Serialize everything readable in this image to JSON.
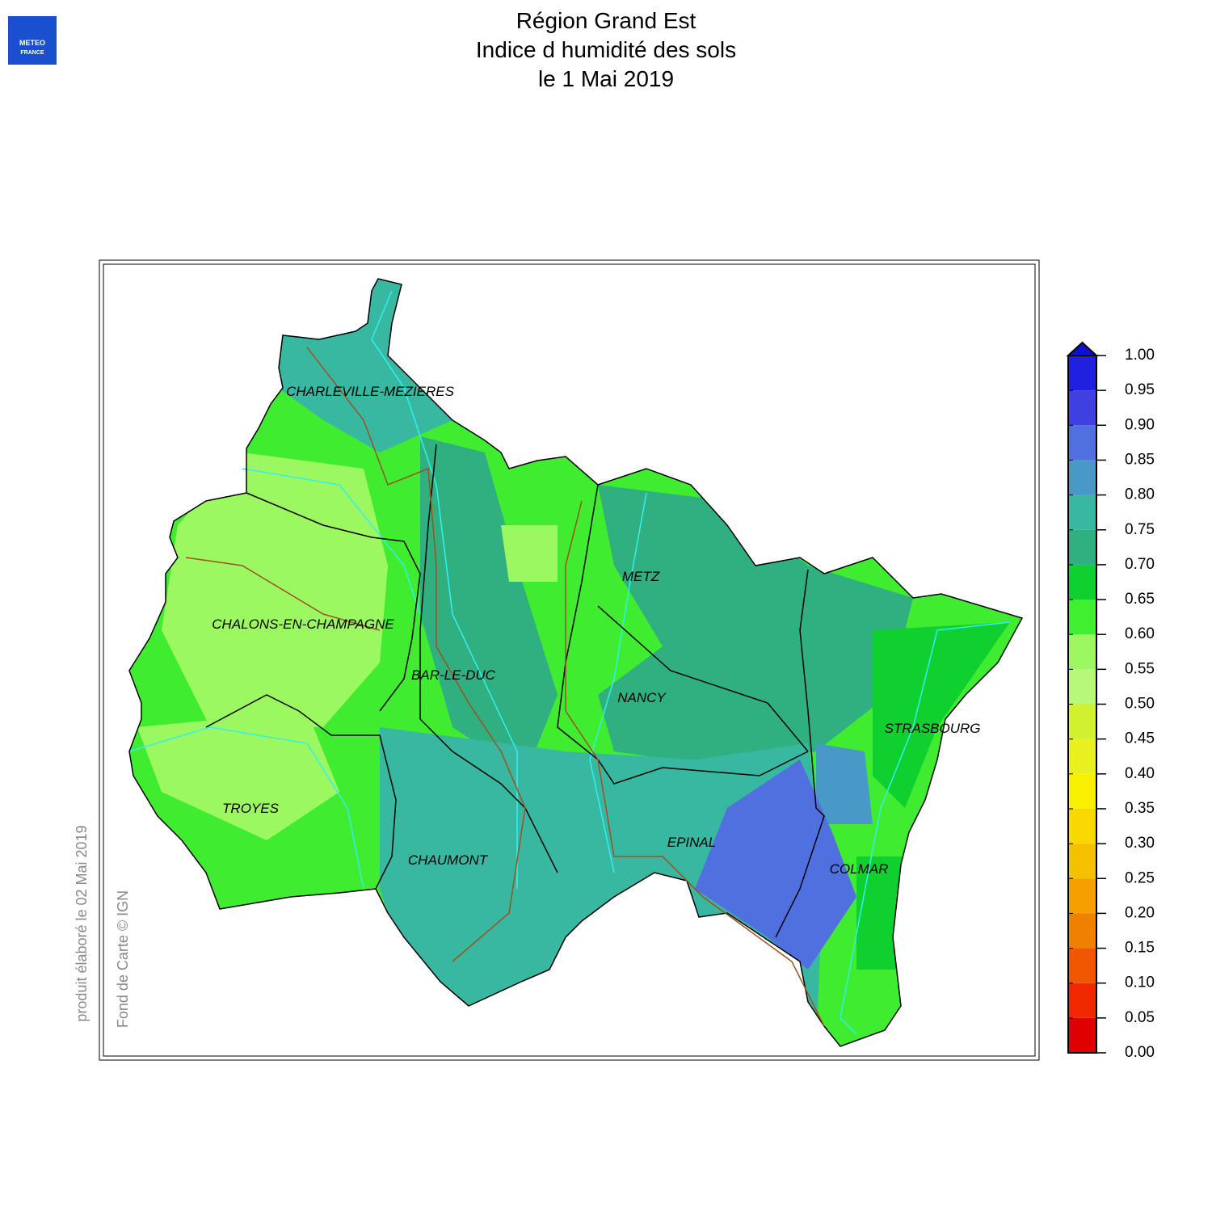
{
  "header": {
    "title": [
      "Région Grand Est",
      "Indice d humidité des sols",
      "le 1 Mai 2019"
    ],
    "logo": [
      "METEO",
      "FRANCE"
    ]
  },
  "map": {
    "cities": [
      "CHARLEVILLE-MEZIERES",
      "METZ",
      "CHALONS-EN-CHAMPAGNE",
      "BAR-LE-DUC",
      "NANCY",
      "STRASBOURG",
      "TROYES",
      "EPINAL",
      "CHAUMONT",
      "COLMAR"
    ]
  },
  "credits": [
    "produit élaboré le 02 Mai 2019",
    "Fond de Carte © IGN"
  ],
  "legend": {
    "ticks": [
      {
        "value": 0,
        "label": "0.00"
      },
      {
        "value": 0.05,
        "label": "0.05"
      },
      {
        "value": 0.1,
        "label": "0.10"
      },
      {
        "value": 0.15,
        "label": "0.15"
      },
      {
        "value": 0.2,
        "label": "0.20"
      },
      {
        "value": 0.25,
        "label": "0.25"
      },
      {
        "value": 0.3,
        "label": "0.30"
      },
      {
        "value": 0.35,
        "label": "0.35"
      },
      {
        "value": 0.4,
        "label": "0.40"
      },
      {
        "value": 0.45,
        "label": "0.45"
      },
      {
        "value": 0.5,
        "label": "0.50"
      },
      {
        "value": 0.55,
        "label": "0.55"
      },
      {
        "value": 0.6,
        "label": "0.60"
      },
      {
        "value": 0.65,
        "label": "0.65"
      },
      {
        "value": 0.7,
        "label": "0.70"
      },
      {
        "value": 0.75,
        "label": "0.75"
      },
      {
        "value": 0.8,
        "label": "0.80"
      },
      {
        "value": 0.85,
        "label": "0.85"
      },
      {
        "value": 0.9,
        "label": "0.90"
      },
      {
        "value": 0.95,
        "label": "0.95"
      },
      {
        "value": 1,
        "label": "1.00"
      }
    ],
    "colors": [
      "#e00000",
      "#f02800",
      "#f05800",
      "#f08000",
      "#f5a000",
      "#f5c000",
      "#f8d800",
      "#f8f000",
      "#e8f020",
      "#d0f030",
      "#b8f878",
      "#9cf860",
      "#40f030",
      "#10d030",
      "#30b080",
      "#38b8a0",
      "#4898c8",
      "#5070e0",
      "#4040e0",
      "#2020e0"
    ],
    "extend_color": "#1010d0"
  }
}
